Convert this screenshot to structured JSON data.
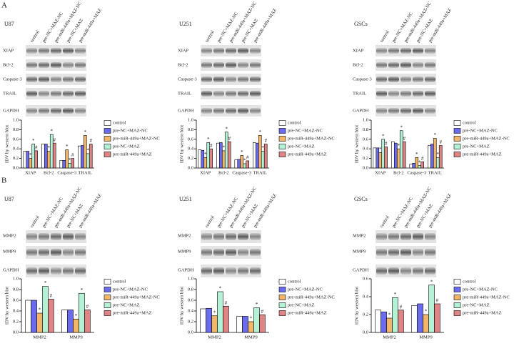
{
  "lanes": [
    "control",
    "pre-NC+MAZ-NC",
    "pre-miR-449a+MAZ-NC",
    "pre-NC+MAZ",
    "pre-miR-449a+MAZ"
  ],
  "panels": [
    {
      "label": "A",
      "columns": [
        {
          "cell": "U87",
          "proteins": [
            "XIAP",
            "Bcl-2",
            "Caspase-3",
            "TRAIL",
            "GAPDH"
          ]
        },
        {
          "cell": "U251",
          "proteins": [
            "XIAP",
            "Bcl-2",
            "Caspase-3",
            "TRAIL",
            "GAPDH"
          ]
        },
        {
          "cell": "GSCs",
          "proteins": [
            "XIAP",
            "Bcl-2",
            "Caspase-3",
            "TRAIL",
            "GAPDH"
          ]
        }
      ]
    },
    {
      "label": "B",
      "columns": [
        {
          "cell": "U87",
          "proteins": [
            "MMP2",
            "MMP9",
            "GAPDH"
          ]
        },
        {
          "cell": "U251",
          "proteins": [
            "MMP2",
            "MMP9",
            "GAPDH"
          ]
        },
        {
          "cell": "GSCs",
          "proteins": [
            "MMP2",
            "MMP9",
            "GAPDH"
          ]
        }
      ]
    }
  ],
  "chart_data": [
    {
      "type": "bar",
      "ylabel": "IDV  by western blot",
      "categories": [
        "XIAP",
        "Bcl-2",
        "Caspase-3",
        "TRAIL"
      ],
      "ylim": [
        0,
        1
      ],
      "yticks": [
        {
          "value": 0,
          "label": "0.0"
        },
        0.2,
        0.4,
        0.6,
        0.8,
        {
          "value": 1,
          "label": "1.0"
        }
      ],
      "series": [
        {
          "name": "control",
          "color": "#ffffff",
          "values": [
            0.35,
            0.5,
            0.16,
            0.46
          ]
        },
        {
          "name": "pre-NC+MAZ-NC",
          "color": "#6b6bf0",
          "values": [
            0.35,
            0.5,
            0.16,
            0.47
          ]
        },
        {
          "name": "pre-miR-449a+MAZ-NC",
          "color": "#f2b66a",
          "values": [
            0.2,
            0.35,
            0.38,
            0.68
          ],
          "markers": [
            "*",
            "*",
            "*",
            "*"
          ]
        },
        {
          "name": "pre-NC+MAZ",
          "color": "#b4f2d6",
          "values": [
            0.5,
            0.7,
            0.1,
            0.3
          ],
          "markers": [
            "*",
            "*",
            "*",
            "*"
          ]
        },
        {
          "name": "pre-miR-449a+MAZ",
          "color": "#e08585",
          "values": [
            0.36,
            0.52,
            0.2,
            0.5
          ],
          "markers": [
            "#",
            "#",
            "#",
            "#"
          ]
        }
      ]
    },
    {
      "type": "bar",
      "ylabel": "IDV  by western blot",
      "categories": [
        "XIAP",
        "Bcl-2",
        "Caspase-3",
        "TRAIL"
      ],
      "ylim": [
        0,
        1
      ],
      "yticks": [
        {
          "value": 0,
          "label": "0.0"
        },
        0.2,
        0.4,
        0.6,
        0.8,
        {
          "value": 1,
          "label": "1.0"
        }
      ],
      "series": [
        {
          "name": "control",
          "color": "#ffffff",
          "values": [
            0.38,
            0.52,
            0.17,
            0.53
          ]
        },
        {
          "name": "pre-NC+MAZ-NC",
          "color": "#6b6bf0",
          "values": [
            0.37,
            0.53,
            0.18,
            0.52
          ]
        },
        {
          "name": "pre-miR-449a+MAZ-NC",
          "color": "#f2b66a",
          "values": [
            0.22,
            0.36,
            0.26,
            0.68
          ],
          "markers": [
            "*",
            "*",
            "*",
            "*"
          ]
        },
        {
          "name": "pre-NC+MAZ",
          "color": "#b4f2d6",
          "values": [
            0.53,
            0.75,
            0.09,
            0.35
          ],
          "markers": [
            "*",
            "*",
            "*",
            "*"
          ]
        },
        {
          "name": "pre-miR-449a+MAZ",
          "color": "#e08585",
          "values": [
            0.4,
            0.55,
            0.15,
            0.5
          ],
          "markers": [
            "#",
            "#",
            "#",
            "#"
          ]
        }
      ]
    },
    {
      "type": "bar",
      "ylabel": "IDV  by western blot",
      "categories": [
        "XIAP",
        "Bcl-2",
        "Caspase-3",
        "TRAIL"
      ],
      "ylim": [
        0,
        1
      ],
      "yticks": [
        {
          "value": 0,
          "label": "0.0"
        },
        0.2,
        0.4,
        0.6,
        0.8,
        {
          "value": 1,
          "label": "1.0"
        }
      ],
      "series": [
        {
          "name": "control",
          "color": "#ffffff",
          "values": [
            0.42,
            0.55,
            0.08,
            0.47
          ]
        },
        {
          "name": "pre-NC+MAZ-NC",
          "color": "#6b6bf0",
          "values": [
            0.42,
            0.52,
            0.1,
            0.5
          ]
        },
        {
          "name": "pre-miR-449a+MAZ-NC",
          "color": "#f2b66a",
          "values": [
            0.32,
            0.4,
            0.22,
            0.62
          ],
          "markers": [
            "*",
            "*",
            "*",
            "*"
          ]
        },
        {
          "name": "pre-NC+MAZ",
          "color": "#b4f2d6",
          "values": [
            0.6,
            0.78,
            0.05,
            0.22
          ],
          "markers": [
            "*",
            "*",
            "*",
            "*"
          ]
        },
        {
          "name": "pre-miR-449a+MAZ",
          "color": "#e08585",
          "values": [
            0.44,
            0.55,
            0.13,
            0.47
          ],
          "markers": [
            "#",
            "#",
            "#",
            "#"
          ]
        }
      ]
    },
    {
      "type": "bar",
      "ylabel": "IDV  by western blot",
      "categories": [
        "MMP2",
        "MMP9"
      ],
      "ylim": [
        0,
        1
      ],
      "yticks": [
        {
          "value": 0,
          "label": "0.0"
        },
        0.2,
        0.4,
        0.6,
        0.8,
        {
          "value": 1,
          "label": "1.0"
        }
      ],
      "series": [
        {
          "name": "control",
          "color": "#ffffff",
          "values": [
            0.6,
            0.42
          ]
        },
        {
          "name": "pre-NC+MAZ-NC",
          "color": "#6b6bf0",
          "values": [
            0.6,
            0.42
          ]
        },
        {
          "name": "pre-miR-449a+MAZ-NC",
          "color": "#f2b66a",
          "values": [
            0.36,
            0.25
          ],
          "markers": [
            "*",
            "*"
          ]
        },
        {
          "name": "pre-NC+MAZ",
          "color": "#b4f2d6",
          "values": [
            0.86,
            0.73
          ],
          "markers": [
            "*",
            "*"
          ]
        },
        {
          "name": "pre-miR-449a+MAZ",
          "color": "#e08585",
          "values": [
            0.62,
            0.42
          ],
          "markers": [
            "#",
            "#"
          ]
        }
      ]
    },
    {
      "type": "bar",
      "ylabel": "IDV  by western blot",
      "categories": [
        "MMP2",
        "MMP9"
      ],
      "ylim": [
        0,
        1
      ],
      "yticks": [
        {
          "value": 0,
          "label": "0.0"
        },
        0.2,
        0.4,
        0.6,
        0.8,
        {
          "value": 1,
          "label": "1.0"
        }
      ],
      "series": [
        {
          "name": "control",
          "color": "#ffffff",
          "values": [
            0.44,
            0.3
          ]
        },
        {
          "name": "pre-NC+MAZ-NC",
          "color": "#6b6bf0",
          "values": [
            0.45,
            0.3
          ]
        },
        {
          "name": "pre-miR-449a+MAZ-NC",
          "color": "#f2b66a",
          "values": [
            0.31,
            0.2
          ],
          "markers": [
            "*",
            "*"
          ]
        },
        {
          "name": "pre-NC+MAZ",
          "color": "#b4f2d6",
          "values": [
            0.76,
            0.46
          ],
          "markers": [
            "*",
            "*"
          ]
        },
        {
          "name": "pre-miR-449a+MAZ",
          "color": "#e08585",
          "values": [
            0.49,
            0.33
          ],
          "markers": [
            "#",
            "#"
          ]
        }
      ]
    },
    {
      "type": "bar",
      "ylabel": "IDV  by western blot",
      "categories": [
        "MMP2",
        "MMP9"
      ],
      "ylim": [
        0,
        0.6
      ],
      "yticks": [
        {
          "value": 0,
          "label": "0.0"
        },
        0.2,
        0.4,
        0.6
      ],
      "series": [
        {
          "name": "control",
          "color": "#ffffff",
          "values": [
            0.25,
            0.3
          ]
        },
        {
          "name": "pre-NC+MAZ-NC",
          "color": "#6b6bf0",
          "values": [
            0.23,
            0.32
          ]
        },
        {
          "name": "pre-miR-449a+MAZ-NC",
          "color": "#f2b66a",
          "values": [
            0.16,
            0.2
          ],
          "markers": [
            "*",
            "*"
          ]
        },
        {
          "name": "pre-NC+MAZ",
          "color": "#b4f2d6",
          "values": [
            0.39,
            0.53
          ],
          "markers": [
            "*",
            "*"
          ]
        },
        {
          "name": "pre-miR-449a+MAZ",
          "color": "#e08585",
          "values": [
            0.25,
            0.32
          ],
          "markers": [
            "#",
            "#"
          ]
        }
      ]
    }
  ]
}
